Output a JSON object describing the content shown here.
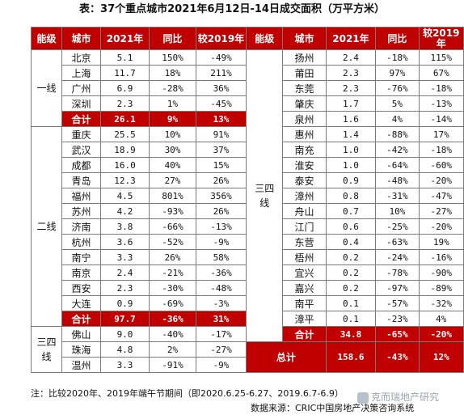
{
  "title": "表：37个重点城市2021年6月12日-14日成交面积（万平方米）",
  "headers": {
    "left": [
      "能级",
      "城市",
      "2021年",
      "同比",
      "较2019年"
    ],
    "right": [
      "能级",
      "城市",
      "2021年",
      "同比",
      "较2019年"
    ]
  },
  "tier1": {
    "label": "一线",
    "rows": [
      [
        "北京",
        "5.1",
        "150%",
        "-49%"
      ],
      [
        "上海",
        "11.7",
        "18%",
        "211%"
      ],
      [
        "广州",
        "6.9",
        "-28%",
        "36%"
      ],
      [
        "深圳",
        "2.3",
        "1%",
        "-45%"
      ]
    ],
    "total": [
      "合计",
      "26.1",
      "9%",
      "13%"
    ]
  },
  "tier2": {
    "label": "二线",
    "rows": [
      [
        "重庆",
        "25.5",
        "10%",
        "91%"
      ],
      [
        "武汉",
        "18.9",
        "30%",
        "37%"
      ],
      [
        "成都",
        "16.0",
        "40%",
        "15%"
      ],
      [
        "青岛",
        "12.3",
        "27%",
        "26%"
      ],
      [
        "福州",
        "4.5",
        "801%",
        "356%"
      ],
      [
        "苏州",
        "4.2",
        "-93%",
        "26%"
      ],
      [
        "济南",
        "3.8",
        "-66%",
        "-13%"
      ],
      [
        "杭州",
        "3.6",
        "-52%",
        "-9%"
      ],
      [
        "南宁",
        "3.3",
        "26%",
        "58%"
      ],
      [
        "南京",
        "2.4",
        "-21%",
        "-36%"
      ],
      [
        "西安",
        "2.3",
        "-30%",
        "-48%"
      ],
      [
        "大连",
        "0.9",
        "-69%",
        "-3%"
      ]
    ],
    "total": [
      "合计",
      "97.7",
      "-36%",
      "31%"
    ]
  },
  "tier34": {
    "label_top": "三四",
    "label_bottom": "线",
    "left_rows": [
      [
        "佛山",
        "9.0",
        "-40%",
        "-17%"
      ],
      [
        "珠海",
        "4.8",
        "2%",
        "-27%"
      ],
      [
        "温州",
        "3.3",
        "-91%",
        "-9%"
      ]
    ],
    "right_rows": [
      [
        "扬州",
        "2.4",
        "-18%",
        "115%"
      ],
      [
        "莆田",
        "2.3",
        "97%",
        "67%"
      ],
      [
        "东莞",
        "2.3",
        "-76%",
        "-18%"
      ],
      [
        "肇庆",
        "1.7",
        "5%",
        "-13%"
      ],
      [
        "泉州",
        "1.6",
        "4%",
        "-14%"
      ],
      [
        "惠州",
        "1.4",
        "-88%",
        "17%"
      ],
      [
        "南充",
        "1.0",
        "-42%",
        "-18%"
      ],
      [
        "淮安",
        "1.0",
        "-64%",
        "-60%"
      ],
      [
        "泰安",
        "0.9",
        "-48%",
        "-20%"
      ],
      [
        "漳州",
        "0.8",
        "-31%",
        "-47%"
      ],
      [
        "舟山",
        "0.7",
        "10%",
        "-27%"
      ],
      [
        "江门",
        "0.6",
        "-25%",
        "-20%"
      ],
      [
        "东营",
        "0.4",
        "-63%",
        "19%"
      ],
      [
        "梧州",
        "0.2",
        "-24%",
        "-16%"
      ],
      [
        "宜兴",
        "0.2",
        "-78%",
        "-90%"
      ],
      [
        "嘉兴",
        "0.2",
        "-97%",
        "-89%"
      ],
      [
        "南平",
        "0.1",
        "-57%",
        "-32%"
      ],
      [
        "漳平",
        "0.1",
        "-23%",
        "4%"
      ]
    ],
    "total": [
      "合计",
      "34.8",
      "-65%",
      "-20%"
    ]
  },
  "grand_total": [
    "总计",
    "158.6",
    "-43%",
    "12%"
  ],
  "note": "注：比较2020年、2019年端午节期间（即2020.6.25-6.27、2019.6.7-6.9）",
  "source": "数据来源：CRIC中国房地产决策咨询系统",
  "watermark": "克而瑞地产研究",
  "colors": {
    "header_bg": "#c00000",
    "header_text": "#ffffff",
    "border": "#7a7a7a"
  }
}
